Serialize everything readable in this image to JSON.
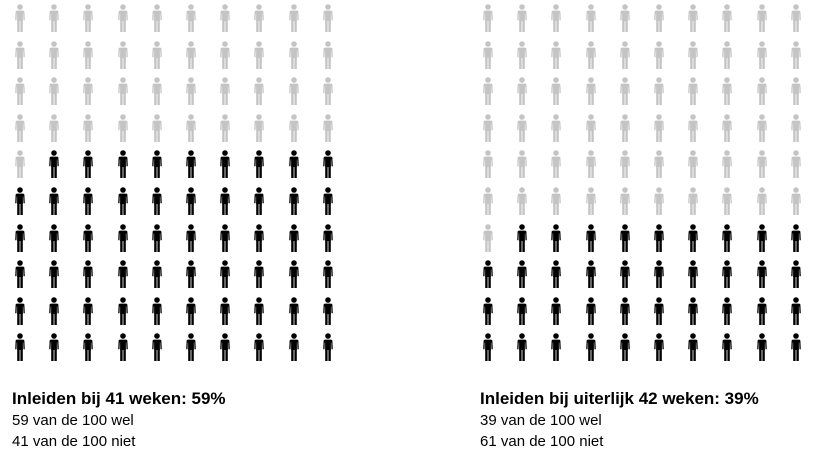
{
  "colors": {
    "filled": "#000000",
    "empty": "#c4c4c4"
  },
  "icon": "person-icon",
  "chart_data": [
    {
      "type": "pictogram",
      "total": 100,
      "rows": 10,
      "columns": 10,
      "filled": 59,
      "empty": 41,
      "title": "Inleiden bij 41 weken: 59%",
      "line_yes": "59 van de 100 wel",
      "line_no": "41 van de 100 niet"
    },
    {
      "type": "pictogram",
      "total": 100,
      "rows": 10,
      "columns": 10,
      "filled": 39,
      "empty": 61,
      "title": "Inleiden bij uiterlijk 42 weken: 39%",
      "line_yes": "39 van de 100 wel",
      "line_no": "61 van de 100 niet"
    }
  ]
}
